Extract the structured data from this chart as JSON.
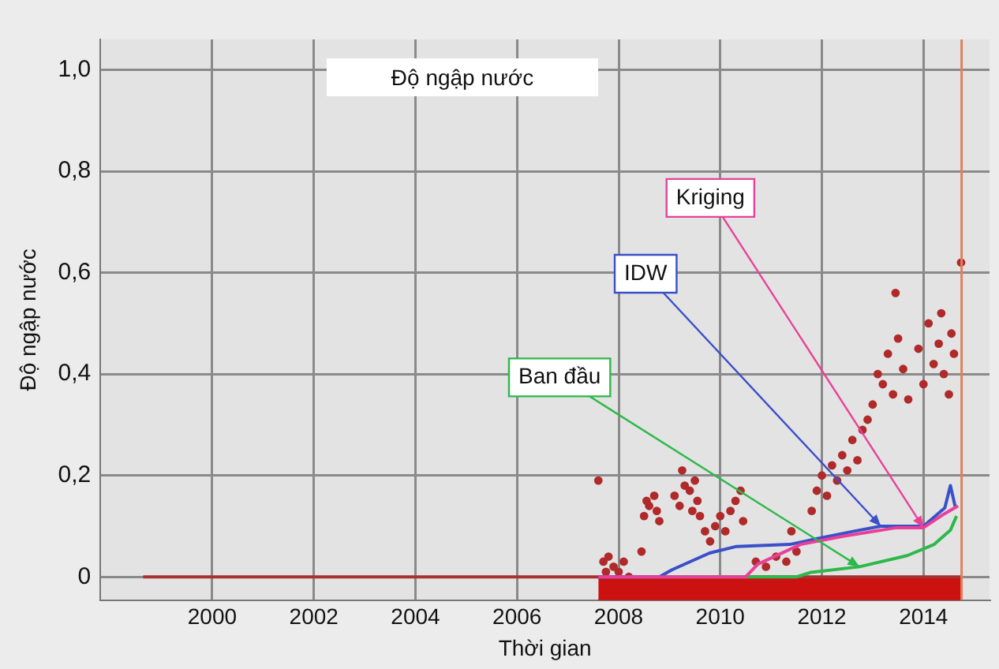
{
  "chart_data": {
    "type": "line",
    "title": "Độ ngập nước",
    "xlabel": "Thời gian",
    "ylabel": "Độ ngập nước",
    "xlim": [
      1997.8,
      2015.3
    ],
    "ylim": [
      -0.046,
      1.06
    ],
    "xticks": [
      2000,
      2002,
      2004,
      2006,
      2008,
      2010,
      2012,
      2014
    ],
    "yticks": [
      {
        "value": 0,
        "label": "0"
      },
      {
        "value": 0.2,
        "label": "0,2"
      },
      {
        "value": 0.4,
        "label": "0,4"
      },
      {
        "value": 0.6,
        "label": "0,6"
      },
      {
        "value": 0.8,
        "label": "0,8"
      },
      {
        "value": 1,
        "label": "1,0"
      }
    ],
    "grid": true,
    "legend": false,
    "marker": "none",
    "line_style": "solid",
    "series": [
      {
        "name": "Kriging",
        "color": "#e8409a",
        "x": [
          2007.6,
          2010.5,
          2010.74,
          2011.58,
          2012.42,
          2013.47,
          2014.0,
          2014.42,
          2014.68
        ],
        "values": [
          0,
          0,
          0.025,
          0.064,
          0.08,
          0.097,
          0.097,
          0.125,
          0.14
        ]
      },
      {
        "name": "IDW",
        "color": "#3a4fc8",
        "x": [
          2007.6,
          2008.8,
          2009.05,
          2009.79,
          2010.32,
          2011.37,
          2011.89,
          2012.63,
          2013.16,
          2014.0,
          2014.42,
          2014.53,
          2014.63
        ],
        "values": [
          0,
          0,
          0.014,
          0.047,
          0.06,
          0.064,
          0.075,
          0.09,
          0.1,
          0.1,
          0.136,
          0.18,
          0.136
        ]
      },
      {
        "name": "Ban đầu",
        "color": "#2db84a",
        "x": [
          2007.6,
          2011.5,
          2011.79,
          2012.74,
          2013.68,
          2014.21,
          2014.53,
          2014.65
        ],
        "values": [
          0,
          0,
          0.009,
          0.02,
          0.042,
          0.064,
          0.092,
          0.12
        ]
      },
      {
        "color": "#a83232",
        "x": [
          1998.64,
          2014.75
        ],
        "values": [
          0,
          0
        ]
      },
      {
        "type": "area",
        "color": "#cc1111",
        "x": [
          2007.6,
          2014.75
        ],
        "values": [
          -0.045,
          -0.045
        ]
      },
      {
        "type": "scatter",
        "color": "#b02a2a",
        "marker": "circle",
        "x": [
          2007.6,
          2007.7,
          2007.75,
          2007.8,
          2007.9,
          2008.0,
          2008.1,
          2008.2,
          2008.45,
          2008.5,
          2008.55,
          2008.6,
          2008.7,
          2008.75,
          2008.8,
          2009.1,
          2009.2,
          2009.25,
          2009.3,
          2009.4,
          2009.45,
          2009.5,
          2009.55,
          2009.6,
          2009.7,
          2009.8,
          2009.9,
          2010.0,
          2010.1,
          2010.2,
          2010.3,
          2010.4,
          2010.45,
          2010.7,
          2010.9,
          2011.1,
          2011.3,
          2011.4,
          2011.5,
          2011.8,
          2011.9,
          2012.0,
          2012.1,
          2012.2,
          2012.3,
          2012.4,
          2012.5,
          2012.6,
          2012.7,
          2012.8,
          2012.9,
          2013.0,
          2013.1,
          2013.2,
          2013.3,
          2013.4,
          2013.5,
          2013.45,
          2013.6,
          2013.7,
          2013.9,
          2014.0,
          2014.1,
          2014.2,
          2014.3,
          2014.35,
          2014.4,
          2014.5,
          2014.55,
          2014.6,
          2014.74
        ],
        "values": [
          0.19,
          0.03,
          0.01,
          0.04,
          0.02,
          0.01,
          0.03,
          0.0,
          0.05,
          0.12,
          0.15,
          0.14,
          0.16,
          0.13,
          0.11,
          0.16,
          0.14,
          0.21,
          0.18,
          0.17,
          0.13,
          0.19,
          0.15,
          0.12,
          0.09,
          0.07,
          0.1,
          0.12,
          0.09,
          0.13,
          0.15,
          0.17,
          0.11,
          0.03,
          0.02,
          0.04,
          0.03,
          0.09,
          0.05,
          0.13,
          0.17,
          0.2,
          0.16,
          0.22,
          0.19,
          0.24,
          0.21,
          0.27,
          0.23,
          0.29,
          0.31,
          0.34,
          0.4,
          0.38,
          0.44,
          0.36,
          0.47,
          0.56,
          0.41,
          0.35,
          0.45,
          0.38,
          0.5,
          0.42,
          0.46,
          0.52,
          0.4,
          0.36,
          0.48,
          0.44,
          0.62
        ]
      }
    ],
    "ref_lines": [
      {
        "axis": "x",
        "value": 2014.75,
        "color": "#e08060"
      }
    ]
  }
}
